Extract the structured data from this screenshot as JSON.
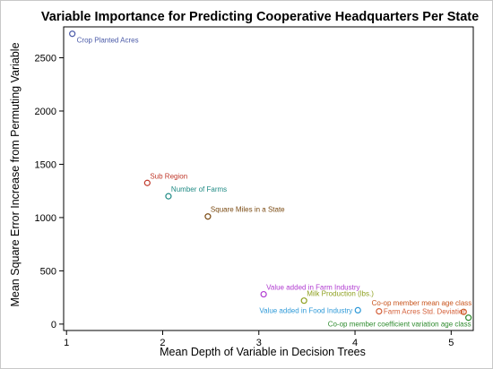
{
  "chart_data": {
    "type": "scatter",
    "title": "Variable Importance for Predicting Cooperative Headquarters Per State",
    "xlabel": "Mean Depth of Variable in Decision Trees",
    "ylabel": "Mean Square Error Increase from Permuting Variable",
    "xlim": [
      0.97,
      5.23
    ],
    "ylim": [
      -60,
      2790
    ],
    "x_ticks": [
      1,
      2,
      3,
      4,
      5
    ],
    "y_ticks": [
      0,
      500,
      1000,
      1500,
      2000,
      2500
    ],
    "grid": false,
    "legend": "none",
    "points": [
      {
        "label": "Crop Planted Acres",
        "x": 1.06,
        "y": 2725,
        "color": "#4a5aa8",
        "label_position": "below-right"
      },
      {
        "label": "Sub Region",
        "x": 1.84,
        "y": 1325,
        "color": "#c0392b",
        "label_position": "above-right"
      },
      {
        "label": "Number of Farms",
        "x": 2.06,
        "y": 1200,
        "color": "#1f8a84",
        "label_position": "above-right"
      },
      {
        "label": "Square Miles in a State",
        "x": 2.47,
        "y": 1010,
        "color": "#7a4a12",
        "label_position": "above-right"
      },
      {
        "label": "Value added in Farm Industry",
        "x": 3.05,
        "y": 280,
        "color": "#b03ad0",
        "label_position": "above-right"
      },
      {
        "label": "Milk Production (lbs.)",
        "x": 3.47,
        "y": 220,
        "color": "#8ea020",
        "label_position": "above-right"
      },
      {
        "label": "Value added in Food Industry",
        "x": 4.03,
        "y": 130,
        "color": "#2f9ad8",
        "label_position": "left"
      },
      {
        "label": "Farm Acres Std. Deviation",
        "x": 4.25,
        "y": 120,
        "color": "#d4603a",
        "label_position": "right"
      },
      {
        "label": "Co-op member mean age class",
        "x": 5.13,
        "y": 115,
        "color": "#c8551e",
        "label_position": "above-left"
      },
      {
        "label": "Co-op member coefficient variation age class",
        "x": 5.18,
        "y": 60,
        "color": "#2e8b2e",
        "label_position": "below-left"
      }
    ]
  }
}
